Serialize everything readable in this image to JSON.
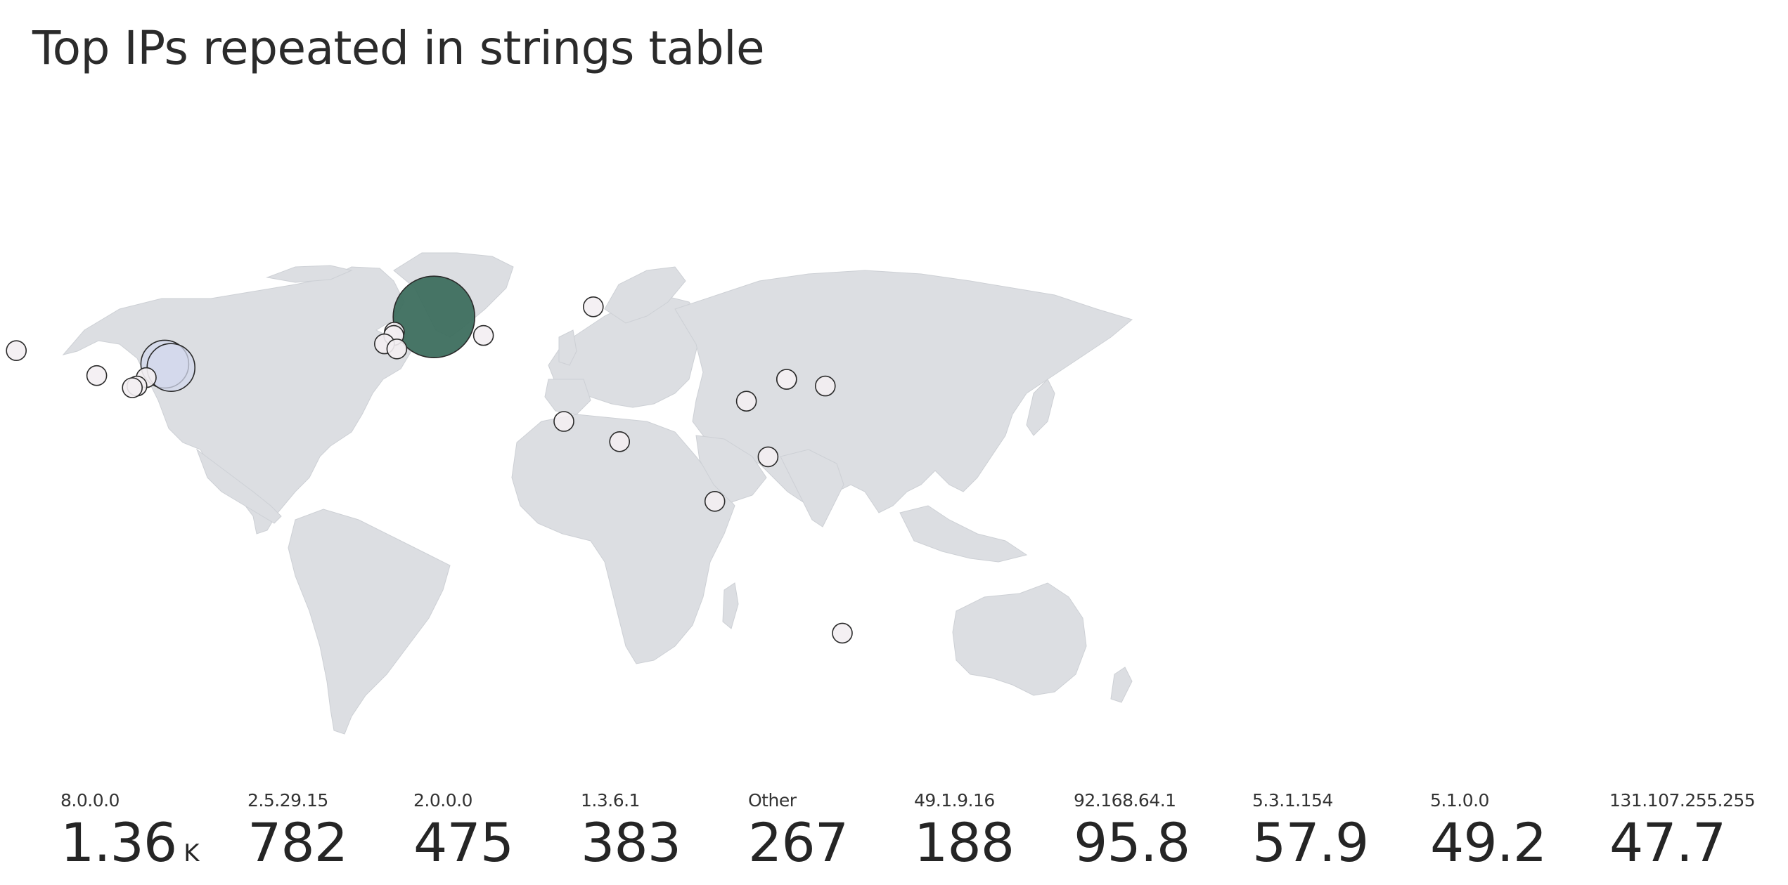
{
  "title": "Top IPs repeated in strings table",
  "colors": {
    "land": "#dcdee2",
    "bubble_max": "#3d6e5e",
    "bubble_mid": "#d3d8ec",
    "bubble_low": "#f3eef2",
    "bubble_stroke": "#2a2a2a"
  },
  "tiles": [
    {
      "label": "8.0.0.0",
      "value": "1.36",
      "unit": "K"
    },
    {
      "label": "2.5.29.15",
      "value": "782",
      "unit": ""
    },
    {
      "label": "2.0.0.0",
      "value": "475",
      "unit": ""
    },
    {
      "label": "1.3.6.1",
      "value": "383",
      "unit": ""
    },
    {
      "label": "Other",
      "value": "267",
      "unit": ""
    },
    {
      "label": "49.1.9.16",
      "value": "188",
      "unit": ""
    },
    {
      "label": "92.168.64.1",
      "value": "95.8",
      "unit": ""
    },
    {
      "label": "5.3.1.154",
      "value": "57.9",
      "unit": ""
    },
    {
      "label": "5.1.0.0",
      "value": "49.2",
      "unit": ""
    },
    {
      "label": "131.107.255.255",
      "value": "47.7",
      "unit": ""
    }
  ],
  "bubbles": [
    {
      "lat": 56,
      "lon": 13,
      "level": "max"
    },
    {
      "lat": 42,
      "lon": -74,
      "level": "mid"
    },
    {
      "lat": 41,
      "lon": -72,
      "level": "mid"
    },
    {
      "lat": 38.6,
      "lon": -96,
      "level": "low"
    },
    {
      "lat": 38,
      "lon": -80,
      "level": "low"
    },
    {
      "lat": 35.5,
      "lon": -83,
      "level": "low"
    },
    {
      "lat": 35,
      "lon": -84.5,
      "level": "low"
    },
    {
      "lat": 46,
      "lon": -122,
      "level": "low"
    },
    {
      "lat": 51.5,
      "lon": 0.2,
      "level": "low"
    },
    {
      "lat": 50.5,
      "lon": 0,
      "level": "low"
    },
    {
      "lat": 48,
      "lon": -3,
      "level": "low"
    },
    {
      "lat": 46.5,
      "lon": 1,
      "level": "low"
    },
    {
      "lat": 50.5,
      "lon": 29,
      "level": "low"
    },
    {
      "lat": 59,
      "lon": 64.5,
      "level": "low"
    },
    {
      "lat": 25,
      "lon": 55,
      "level": "low"
    },
    {
      "lat": 19,
      "lon": 73,
      "level": "low"
    },
    {
      "lat": 31,
      "lon": 114,
      "level": "low"
    },
    {
      "lat": 37.5,
      "lon": 127,
      "level": "low"
    },
    {
      "lat": 37.5,
      "lon": 127,
      "level": "low"
    },
    {
      "lat": 35.5,
      "lon": 139.5,
      "level": "low"
    },
    {
      "lat": 14.5,
      "lon": 121,
      "level": "low"
    },
    {
      "lat": 1.3,
      "lon": 103.8,
      "level": "low"
    },
    {
      "lat": -37.8,
      "lon": 145,
      "level": "low"
    }
  ]
}
